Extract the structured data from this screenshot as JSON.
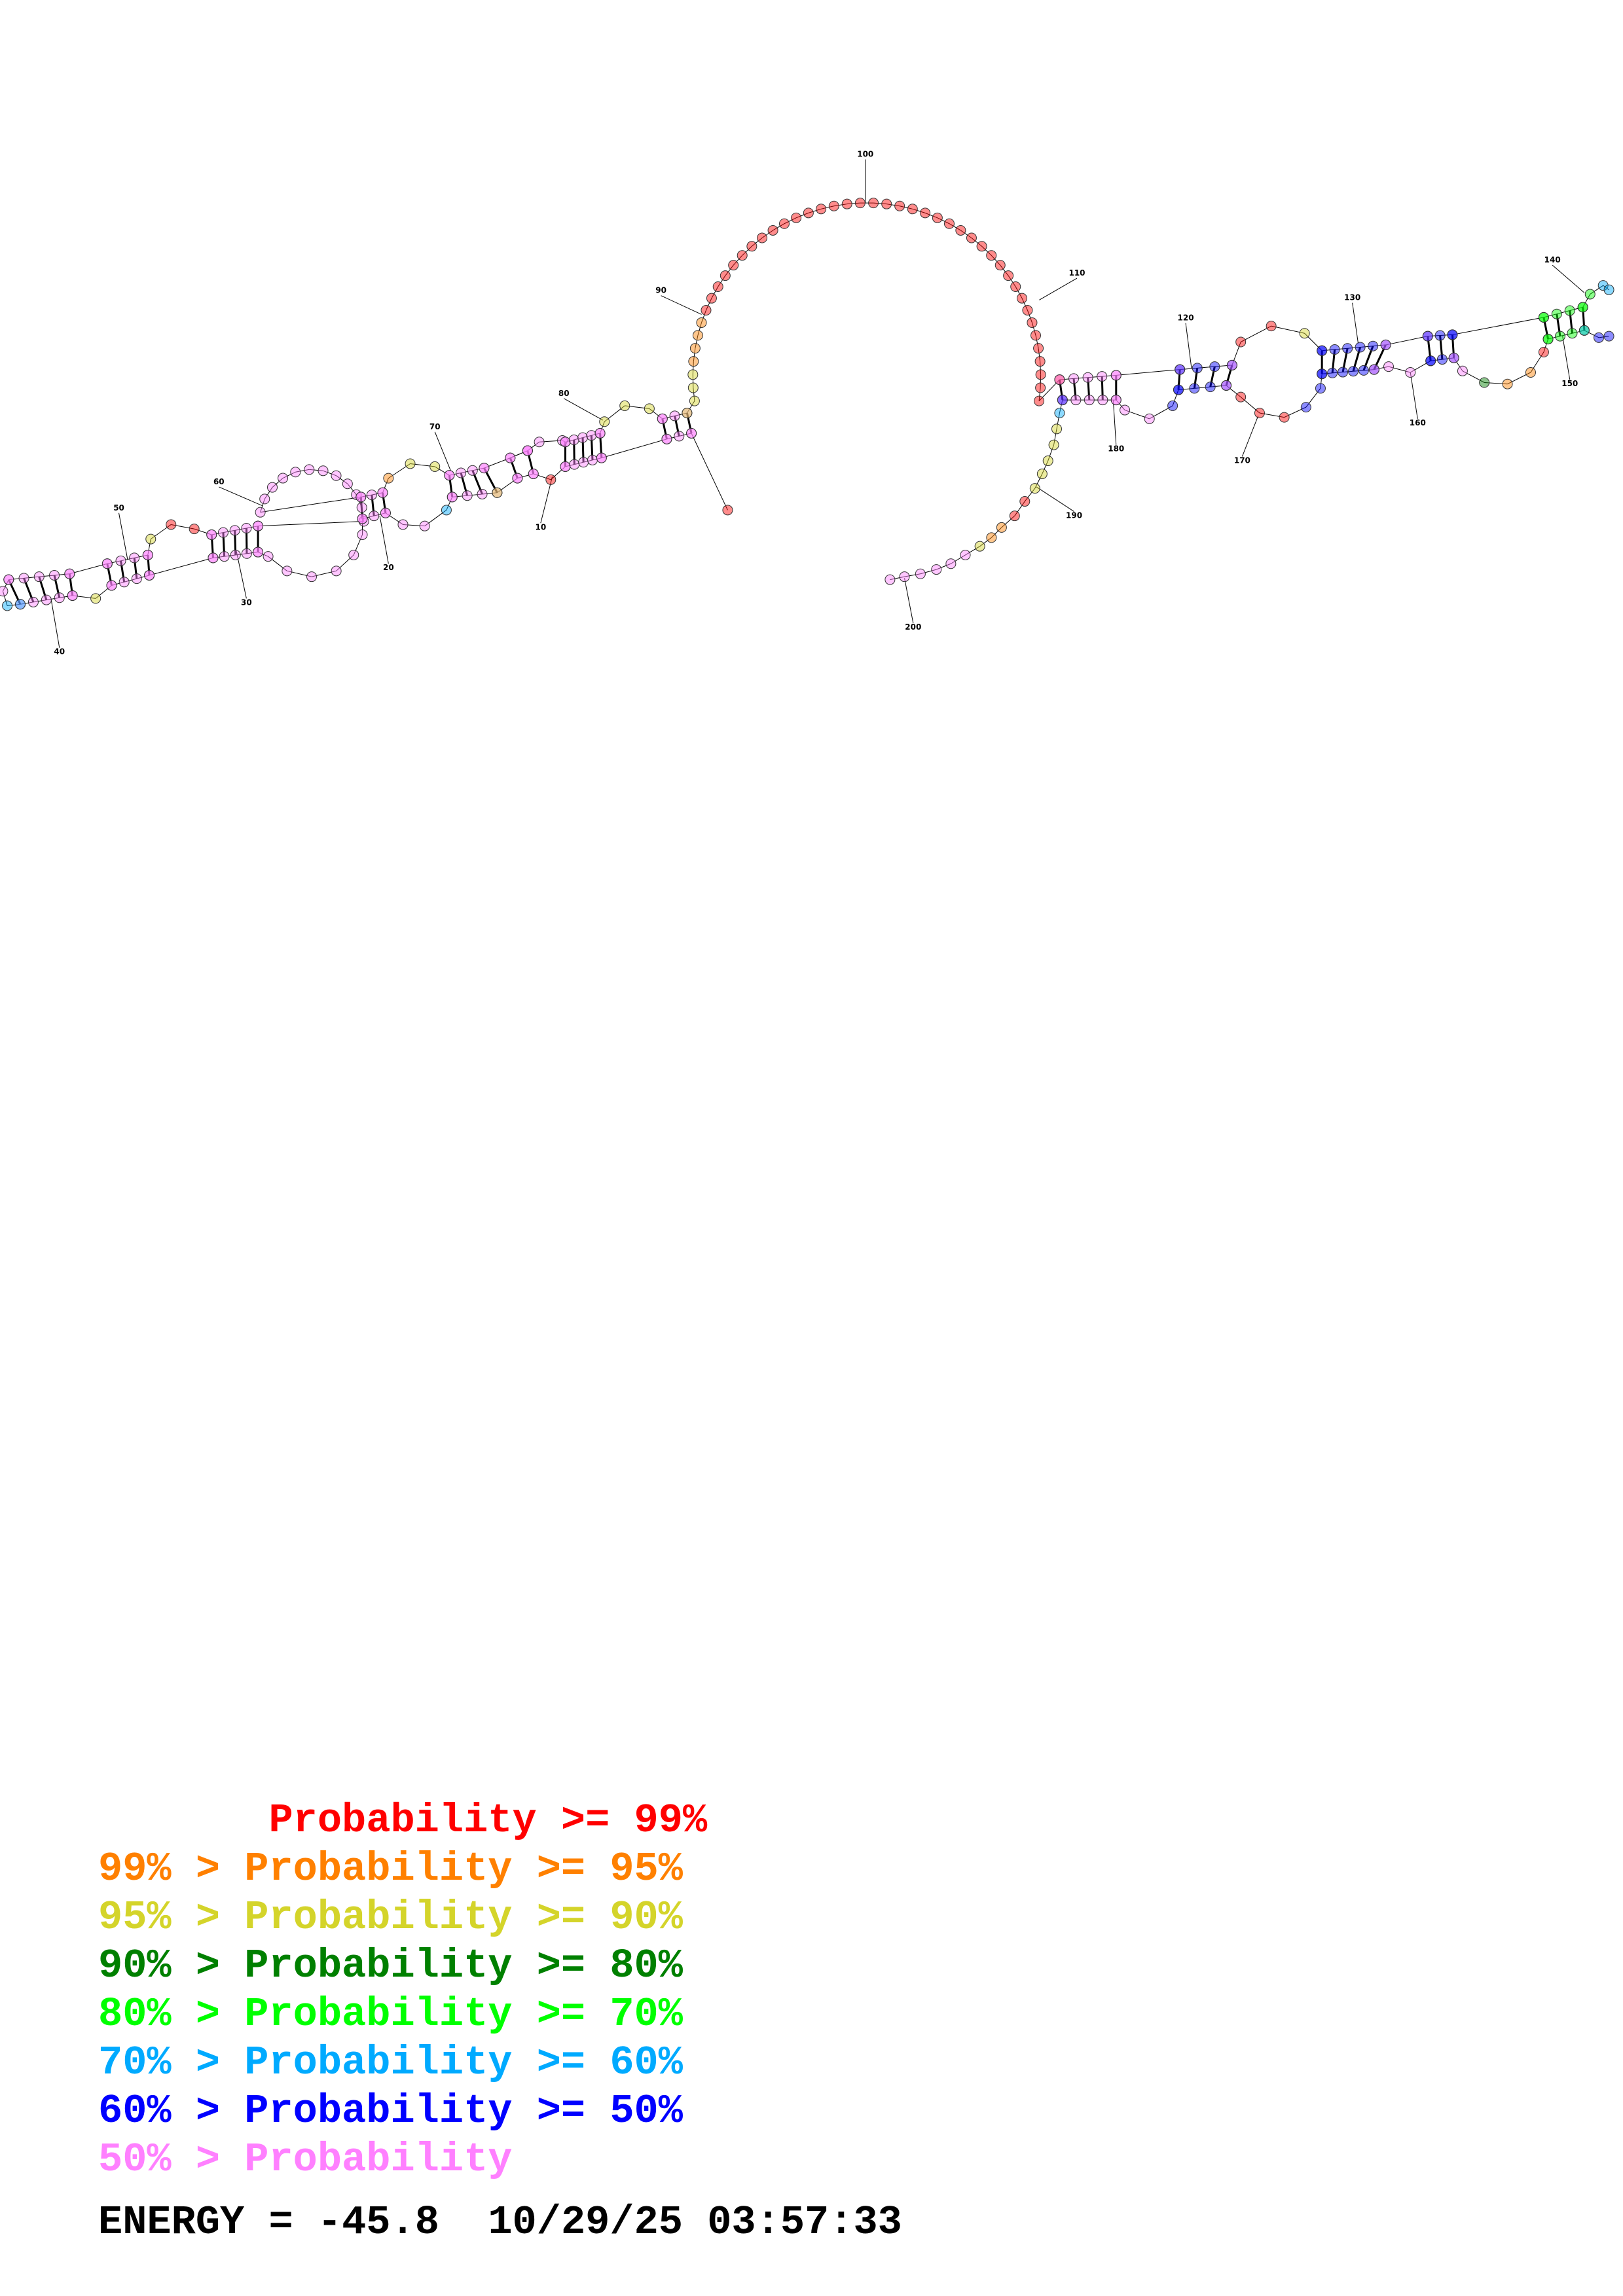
{
  "legend": [
    {
      "text": "       Probability >= 99%",
      "color": "#ff0000"
    },
    {
      "text": "99% > Probability >= 95%",
      "color": "#ff8000"
    },
    {
      "text": "95% > Probability >= 90%",
      "color": "#d4d42a"
    },
    {
      "text": "90% > Probability >= 80%",
      "color": "#008000"
    },
    {
      "text": "80% > Probability >= 70%",
      "color": "#00ff00"
    },
    {
      "text": "70% > Probability >= 60%",
      "color": "#00aaff"
    },
    {
      "text": "60% > Probability >= 50%",
      "color": "#0000ff"
    },
    {
      "text": "50% > Probability",
      "color": "#ff80ff"
    }
  ],
  "footer": {
    "energy_label": "ENERGY =",
    "energy_value": "-45.8",
    "date": "10/29/25",
    "time": "03:57:33"
  },
  "structure": {
    "position_labels": [
      "10",
      "20",
      "30",
      "40",
      "50",
      "60",
      "70",
      "80",
      "90",
      "100",
      "110",
      "120",
      "130",
      "140",
      "150",
      "160",
      "170",
      "180",
      "190",
      "200"
    ],
    "categories": [
      "p99",
      "p95",
      "p90",
      "p80",
      "p70",
      "p60",
      "p50",
      "plow"
    ],
    "colors": {
      "p99": "#ff0000",
      "p95": "#ff8000",
      "p90": "#d4d42a",
      "p80": "#008000",
      "p70": "#00ff00",
      "p60": "#00aaff",
      "p50": "#0000ff",
      "plow": "#ff80ff"
    }
  }
}
